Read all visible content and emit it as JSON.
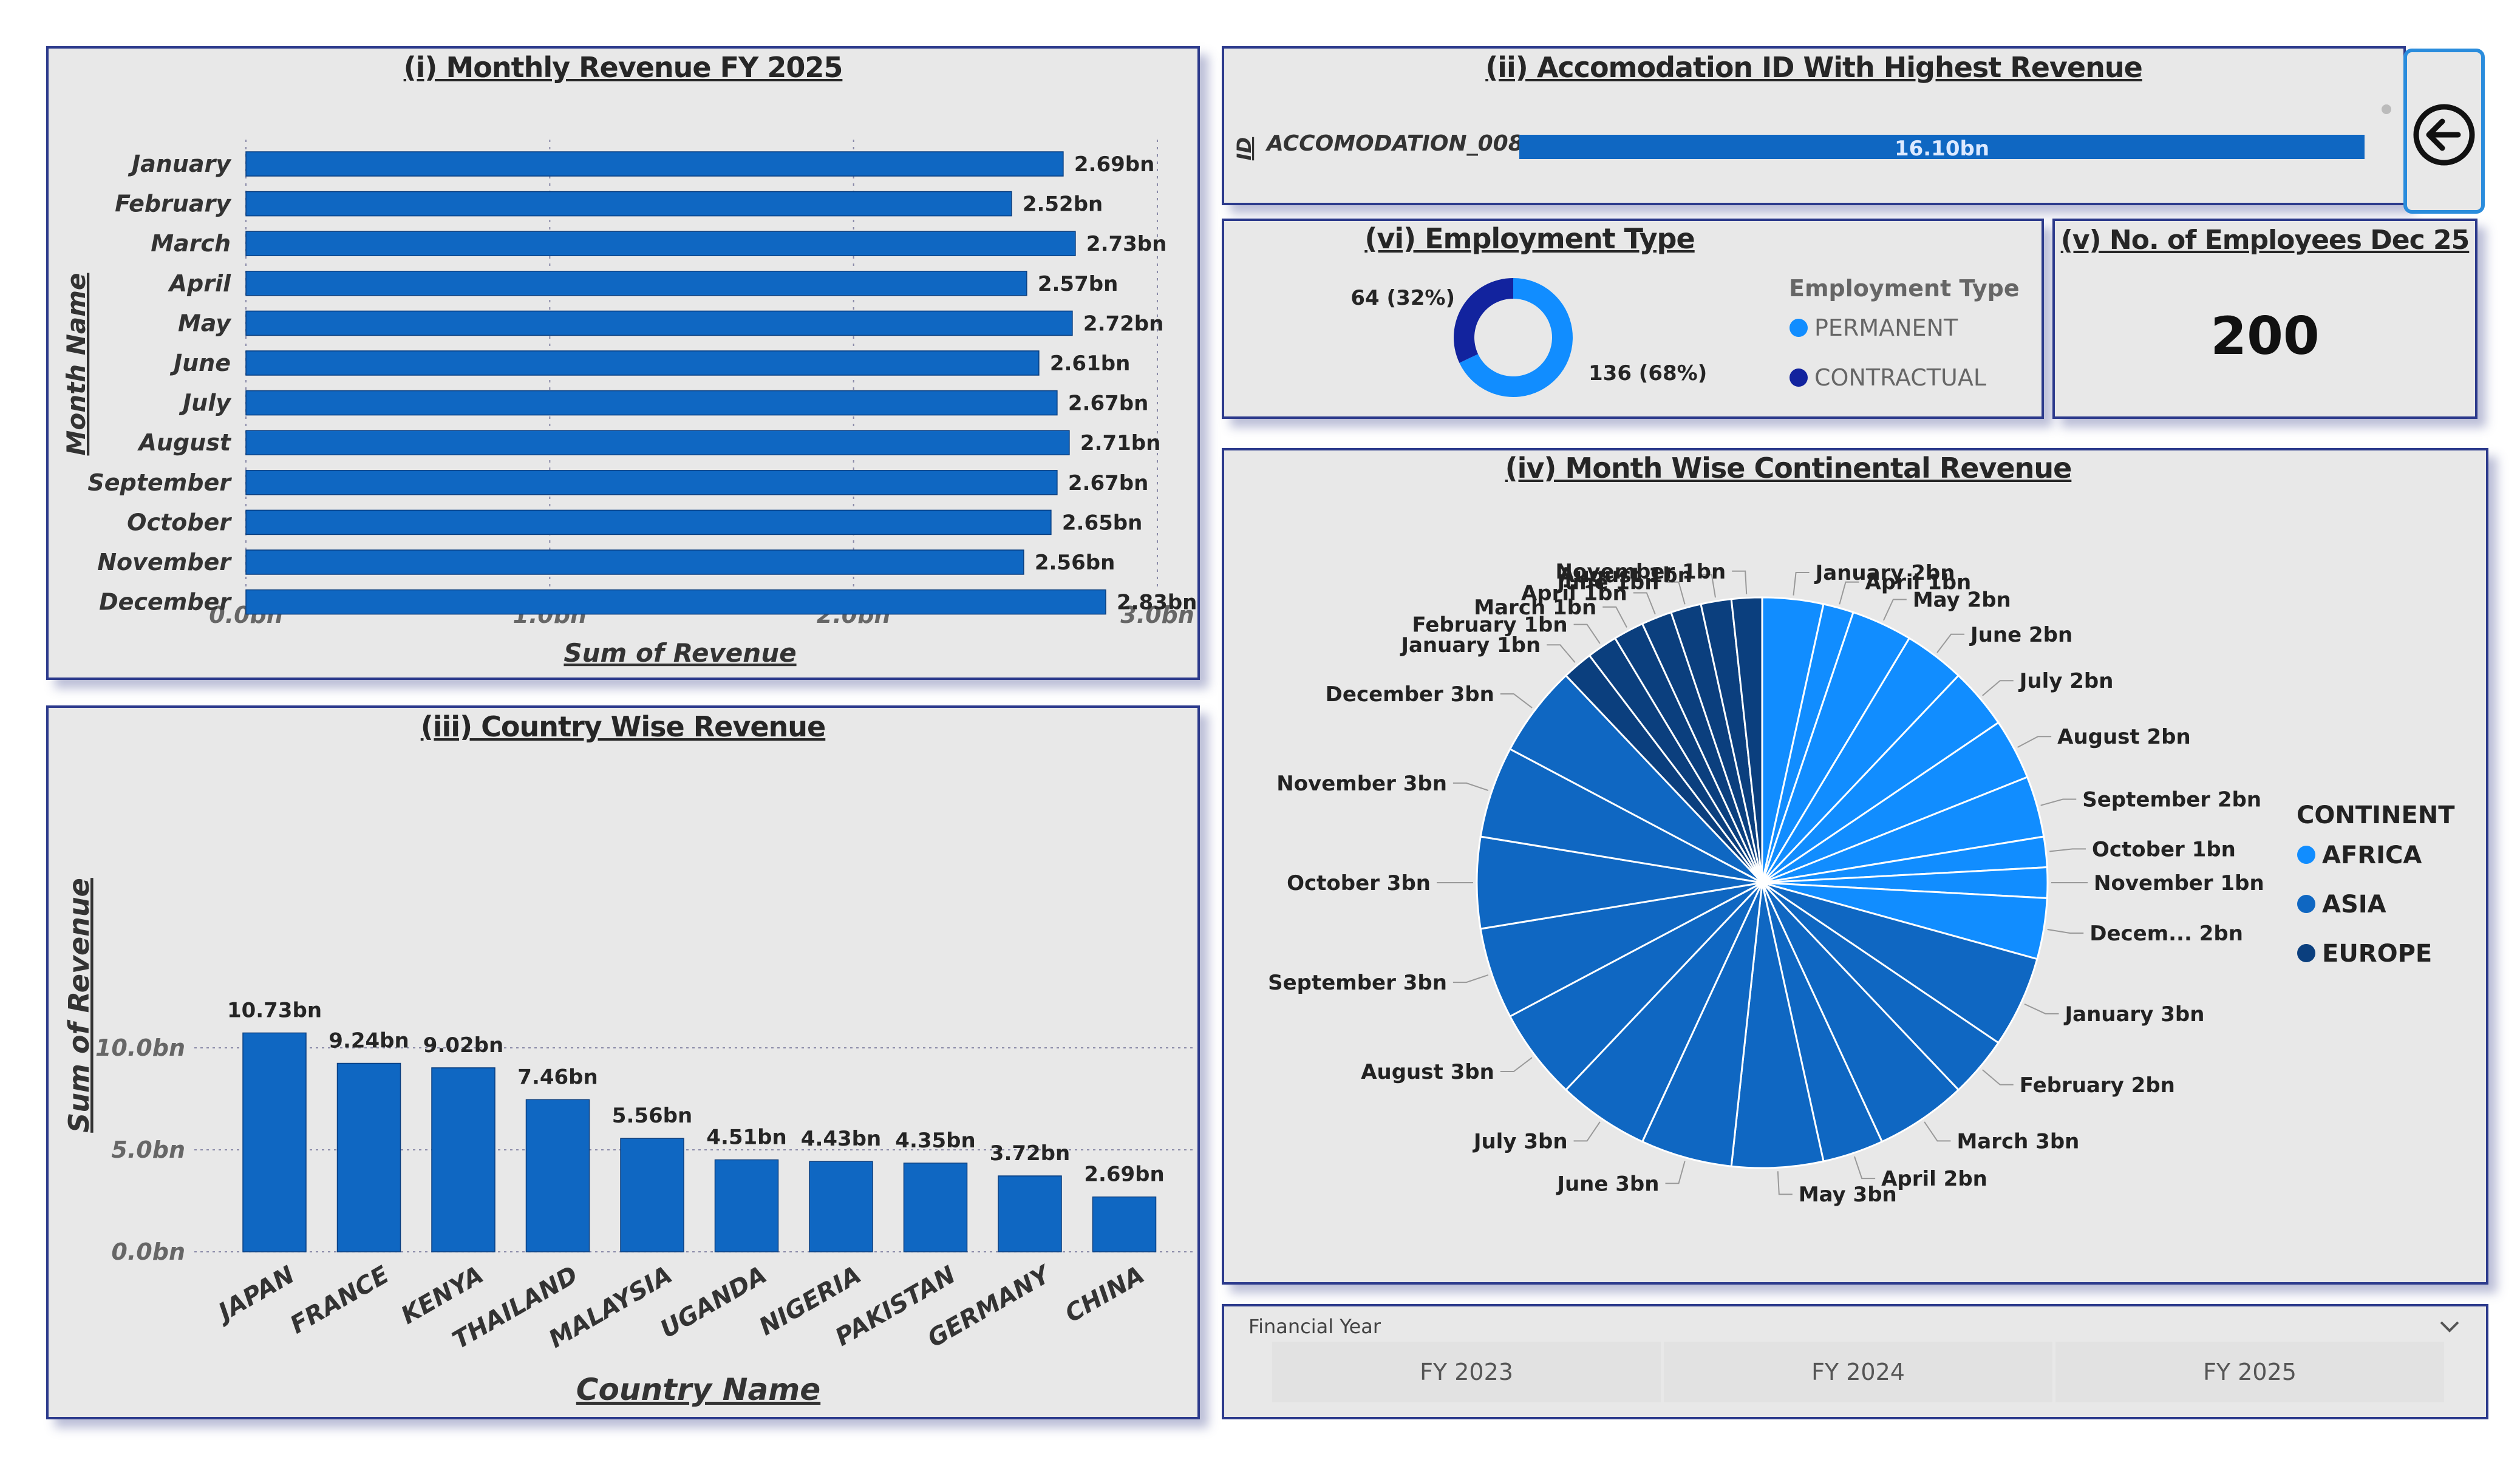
{
  "panels": {
    "monthly": {
      "title": "(i) Monthly Revenue FY 2025",
      "ylabel": "Month Name",
      "xlabel": "Sum of Revenue"
    },
    "accom": {
      "title": "(ii) Accomodation ID With Highest Revenue",
      "axis_label": "ID",
      "category": "ACCOMODATION_008",
      "value_label": "16.10bn"
    },
    "country": {
      "title": "(iii) Country Wise Revenue",
      "ylabel": "Sum of Revenue",
      "xlabel": "Country Name"
    },
    "continental": {
      "title": "(iv) Month Wise Continental Revenue"
    },
    "employees": {
      "title": "(v) No. of Employees Dec 25",
      "value": "200"
    },
    "employment": {
      "title": "(vi) Employment Type"
    }
  },
  "slicer": {
    "title": "Financial Year",
    "options": [
      "FY 2023",
      "FY 2024",
      "FY 2025"
    ]
  },
  "colors": {
    "bar": "#0f67c2",
    "africa": "#118dff",
    "asia": "#0f67c2",
    "europe": "#0b3f7e",
    "contractual": "#12239e"
  },
  "chart_data": [
    {
      "type": "bar",
      "orientation": "horizontal",
      "title": "(i) Monthly Revenue FY 2025",
      "xlabel": "Sum of Revenue",
      "ylabel": "Month Name",
      "categories": [
        "January",
        "February",
        "March",
        "April",
        "May",
        "June",
        "July",
        "August",
        "September",
        "October",
        "November",
        "December"
      ],
      "values": [
        2.69,
        2.52,
        2.73,
        2.57,
        2.72,
        2.61,
        2.67,
        2.71,
        2.67,
        2.65,
        2.56,
        2.83
      ],
      "labels": [
        "2.69bn",
        "2.52bn",
        "2.73bn",
        "2.57bn",
        "2.72bn",
        "2.61bn",
        "2.67bn",
        "2.71bn",
        "2.67bn",
        "2.65bn",
        "2.56bn",
        "2.83bn"
      ],
      "xlim": [
        0,
        3
      ],
      "xticks": [
        "0.0bn",
        "1.0bn",
        "2.0bn",
        "3.0bn"
      ]
    },
    {
      "type": "bar",
      "orientation": "horizontal",
      "title": "(ii) Accomodation ID With Highest Revenue",
      "categories": [
        "ACCOMODATION_008"
      ],
      "values": [
        16.1
      ],
      "labels": [
        "16.10bn"
      ]
    },
    {
      "type": "bar",
      "title": "(iii) Country Wise Revenue",
      "xlabel": "Country Name",
      "ylabel": "Sum of Revenue",
      "categories": [
        "JAPAN",
        "FRANCE",
        "KENYA",
        "THAILAND",
        "MALAYSIA",
        "UGANDA",
        "NIGERIA",
        "PAKISTAN",
        "GERMANY",
        "CHINA"
      ],
      "values": [
        10.73,
        9.24,
        9.02,
        7.46,
        5.56,
        4.51,
        4.43,
        4.35,
        3.72,
        2.69
      ],
      "labels": [
        "10.73bn",
        "9.24bn",
        "9.02bn",
        "7.46bn",
        "5.56bn",
        "4.51bn",
        "4.43bn",
        "4.35bn",
        "3.72bn",
        "2.69bn"
      ],
      "ylim": [
        0,
        12
      ],
      "yticks": [
        "0.0bn",
        "5.0bn",
        "10.0bn"
      ]
    },
    {
      "type": "pie",
      "title": "(iv) Month Wise Continental Revenue",
      "legend_title": "CONTINENT",
      "legend": [
        "AFRICA",
        "ASIA",
        "EUROPE"
      ],
      "slices": [
        {
          "label": "January 2bn",
          "continent": "AFRICA",
          "value": 2
        },
        {
          "label": "April 1bn",
          "continent": "AFRICA",
          "value": 1
        },
        {
          "label": "May 2bn",
          "continent": "AFRICA",
          "value": 2
        },
        {
          "label": "June 2bn",
          "continent": "AFRICA",
          "value": 2
        },
        {
          "label": "July 2bn",
          "continent": "AFRICA",
          "value": 2
        },
        {
          "label": "August 2bn",
          "continent": "AFRICA",
          "value": 2
        },
        {
          "label": "September 2bn",
          "continent": "AFRICA",
          "value": 2
        },
        {
          "label": "October 1bn",
          "continent": "AFRICA",
          "value": 1
        },
        {
          "label": "November 1bn",
          "continent": "AFRICA",
          "value": 1
        },
        {
          "label": "Decem... 2bn",
          "continent": "AFRICA",
          "value": 2
        },
        {
          "label": "January 3bn",
          "continent": "ASIA",
          "value": 3
        },
        {
          "label": "February 2bn",
          "continent": "ASIA",
          "value": 2
        },
        {
          "label": "March 3bn",
          "continent": "ASIA",
          "value": 3
        },
        {
          "label": "April 2bn",
          "continent": "ASIA",
          "value": 2
        },
        {
          "label": "May 3bn",
          "continent": "ASIA",
          "value": 3
        },
        {
          "label": "June 3bn",
          "continent": "ASIA",
          "value": 3
        },
        {
          "label": "July 3bn",
          "continent": "ASIA",
          "value": 3
        },
        {
          "label": "August 3bn",
          "continent": "ASIA",
          "value": 3
        },
        {
          "label": "September 3bn",
          "continent": "ASIA",
          "value": 3
        },
        {
          "label": "October 3bn",
          "continent": "ASIA",
          "value": 3
        },
        {
          "label": "November 3bn",
          "continent": "ASIA",
          "value": 3
        },
        {
          "label": "December 3bn",
          "continent": "ASIA",
          "value": 3
        },
        {
          "label": "January 1bn",
          "continent": "EUROPE",
          "value": 1
        },
        {
          "label": "February 1bn",
          "continent": "EUROPE",
          "value": 1
        },
        {
          "label": "March 1bn",
          "continent": "EUROPE",
          "value": 1
        },
        {
          "label": "April 1bn",
          "continent": "EUROPE",
          "value": 1
        },
        {
          "label": "June 1bn",
          "continent": "EUROPE",
          "value": 1
        },
        {
          "label": "August 1bn",
          "continent": "EUROPE",
          "value": 1
        },
        {
          "label": "November 1bn",
          "continent": "EUROPE",
          "value": 1
        }
      ]
    },
    {
      "type": "pie",
      "subtype": "donut",
      "title": "(vi) Employment Type",
      "legend_title": "Employment Type",
      "legend": [
        "PERMANENT",
        "CONTRACTUAL"
      ],
      "values": [
        136,
        64
      ],
      "labels": [
        "136 (68%)",
        "64 (32%)"
      ]
    }
  ]
}
